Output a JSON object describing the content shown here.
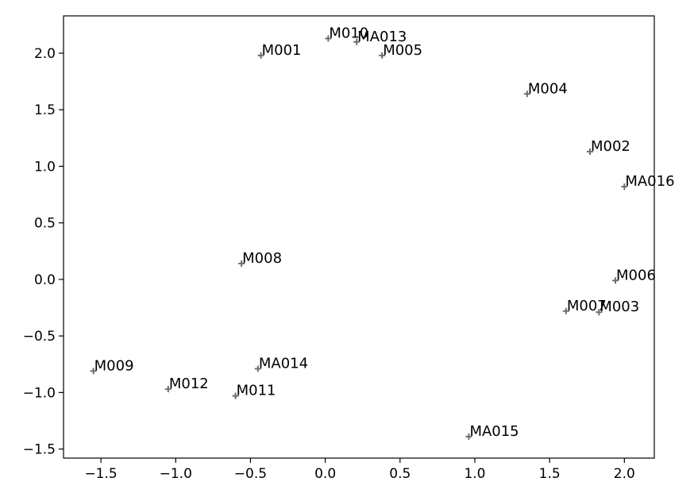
{
  "chart_data": {
    "type": "scatter",
    "title": "",
    "xlabel": "",
    "ylabel": "",
    "xlim": [
      -1.75,
      2.2
    ],
    "ylim": [
      -1.58,
      2.33
    ],
    "xticks": [
      -1.5,
      -1.0,
      -0.5,
      0.0,
      0.5,
      1.0,
      1.5,
      2.0
    ],
    "xtick_labels": [
      "−1.5",
      "−1.0",
      "−0.5",
      "0.0",
      "0.5",
      "1.0",
      "1.5",
      "2.0"
    ],
    "yticks": [
      -1.5,
      -1.0,
      -0.5,
      0.0,
      0.5,
      1.0,
      1.5,
      2.0
    ],
    "ytick_labels": [
      "−1.5",
      "−1.0",
      "−0.5",
      "0.0",
      "0.5",
      "1.0",
      "1.5",
      "2.0"
    ],
    "grid": false,
    "marker": "+",
    "marker_color": "#6e6e6e",
    "points": [
      {
        "label": "M001",
        "x": -0.43,
        "y": 1.98
      },
      {
        "label": "M010",
        "x": 0.02,
        "y": 2.13
      },
      {
        "label": "MA013",
        "x": 0.21,
        "y": 2.1
      },
      {
        "label": "M005",
        "x": 0.38,
        "y": 1.98
      },
      {
        "label": "M004",
        "x": 1.35,
        "y": 1.64
      },
      {
        "label": "M002",
        "x": 1.77,
        "y": 1.13
      },
      {
        "label": "MA016",
        "x": 2.0,
        "y": 0.82
      },
      {
        "label": "M008",
        "x": -0.56,
        "y": 0.14
      },
      {
        "label": "M006",
        "x": 1.94,
        "y": -0.01
      },
      {
        "label": "M007",
        "x": 1.61,
        "y": -0.28
      },
      {
        "label": "M003",
        "x": 1.83,
        "y": -0.29
      },
      {
        "label": "M009",
        "x": -1.55,
        "y": -0.81
      },
      {
        "label": "MA014",
        "x": -0.45,
        "y": -0.79
      },
      {
        "label": "M012",
        "x": -1.05,
        "y": -0.97
      },
      {
        "label": "M011",
        "x": -0.6,
        "y": -1.03
      },
      {
        "label": "MA015",
        "x": 0.96,
        "y": -1.39
      }
    ]
  }
}
